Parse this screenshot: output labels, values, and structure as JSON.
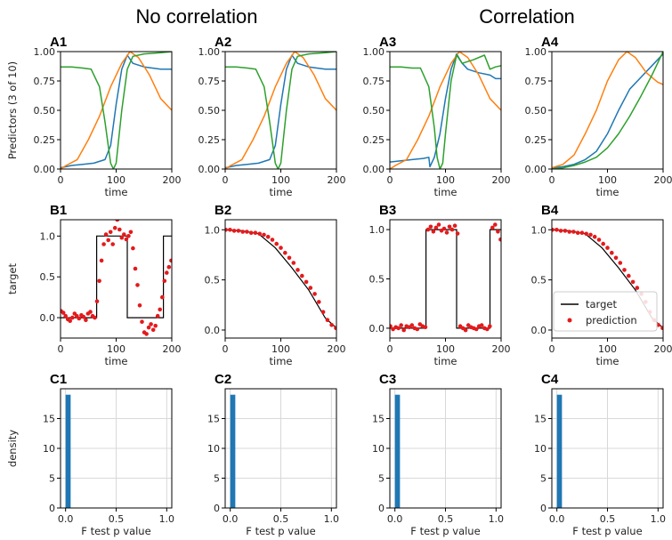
{
  "headings": {
    "left": "No correlation",
    "right": "Correlation"
  },
  "colors": {
    "blue": "#1f77b4",
    "orange": "#ff7f0e",
    "green": "#2ca02c",
    "red": "#e41a1c",
    "black": "#000000"
  },
  "chart_data": [
    {
      "panel": "A1",
      "type": "line",
      "xlabel": "time",
      "ylabel": "Predictors (3 of 10)",
      "xlim": [
        0,
        200
      ],
      "ylim": [
        0,
        1
      ],
      "xticks": [
        0,
        100,
        200
      ],
      "yticks": [
        "0.00",
        "0.25",
        "0.50",
        "0.75",
        "1.00"
      ],
      "series": [
        {
          "color": "#1f77b4",
          "x": [
            0,
            20,
            40,
            60,
            80,
            90,
            100,
            110,
            120,
            130,
            150,
            180,
            200
          ],
          "y": [
            0.01,
            0.03,
            0.04,
            0.05,
            0.08,
            0.2,
            0.55,
            0.85,
            0.97,
            0.9,
            0.87,
            0.85,
            0.85
          ]
        },
        {
          "color": "#ff7f0e",
          "x": [
            0,
            10,
            30,
            50,
            70,
            90,
            110,
            125,
            140,
            160,
            180,
            200
          ],
          "y": [
            0,
            0.03,
            0.08,
            0.25,
            0.45,
            0.7,
            0.9,
            1.0,
            0.95,
            0.8,
            0.6,
            0.5
          ]
        },
        {
          "color": "#2ca02c",
          "x": [
            0,
            20,
            40,
            55,
            70,
            80,
            90,
            95,
            100,
            110,
            120,
            130,
            150,
            180,
            200
          ],
          "y": [
            0.87,
            0.87,
            0.86,
            0.85,
            0.7,
            0.4,
            0.05,
            0.0,
            0.05,
            0.5,
            0.85,
            0.96,
            0.98,
            0.99,
            1.0
          ]
        }
      ]
    },
    {
      "panel": "A2",
      "type": "line",
      "xlabel": "time",
      "xlim": [
        0,
        200
      ],
      "ylim": [
        0,
        1
      ],
      "xticks": [
        0,
        100,
        200
      ],
      "yticks": [
        "0.00",
        "0.25",
        "0.50",
        "0.75",
        "1.00"
      ],
      "series": [
        {
          "color": "#1f77b4",
          "x": [
            0,
            20,
            40,
            60,
            80,
            90,
            100,
            110,
            120,
            130,
            150,
            180,
            200
          ],
          "y": [
            0.01,
            0.03,
            0.04,
            0.05,
            0.08,
            0.2,
            0.55,
            0.85,
            0.97,
            0.9,
            0.87,
            0.85,
            0.85
          ]
        },
        {
          "color": "#ff7f0e",
          "x": [
            0,
            10,
            30,
            50,
            70,
            90,
            110,
            125,
            140,
            160,
            180,
            200
          ],
          "y": [
            0,
            0.03,
            0.08,
            0.25,
            0.45,
            0.7,
            0.9,
            1.0,
            0.95,
            0.8,
            0.6,
            0.5
          ]
        },
        {
          "color": "#2ca02c",
          "x": [
            0,
            20,
            40,
            55,
            70,
            80,
            90,
            95,
            100,
            110,
            120,
            130,
            150,
            180,
            200
          ],
          "y": [
            0.87,
            0.87,
            0.86,
            0.85,
            0.7,
            0.4,
            0.05,
            0.0,
            0.05,
            0.5,
            0.85,
            0.96,
            0.98,
            0.99,
            1.0
          ]
        }
      ]
    },
    {
      "panel": "A3",
      "type": "line",
      "xlabel": "time",
      "xlim": [
        0,
        200
      ],
      "ylim": [
        0,
        1
      ],
      "xticks": [
        0,
        100,
        200
      ],
      "yticks": [
        "0.00",
        "0.25",
        "0.50",
        "0.75",
        "1.00"
      ],
      "series": [
        {
          "color": "#1f77b4",
          "x": [
            0,
            20,
            40,
            60,
            70,
            72,
            80,
            90,
            100,
            110,
            120,
            130,
            140,
            160,
            180,
            190,
            200
          ],
          "y": [
            0.06,
            0.07,
            0.08,
            0.09,
            0.1,
            0.02,
            0.1,
            0.3,
            0.6,
            0.85,
            0.98,
            0.9,
            0.85,
            0.82,
            0.8,
            0.77,
            0.77
          ]
        },
        {
          "color": "#ff7f0e",
          "x": [
            0,
            10,
            30,
            50,
            70,
            90,
            110,
            125,
            140,
            160,
            180,
            200
          ],
          "y": [
            0,
            0.03,
            0.08,
            0.25,
            0.45,
            0.7,
            0.9,
            1.0,
            0.95,
            0.8,
            0.6,
            0.5
          ]
        },
        {
          "color": "#2ca02c",
          "x": [
            0,
            20,
            40,
            55,
            70,
            80,
            85,
            90,
            95,
            100,
            110,
            120,
            130,
            150,
            170,
            180,
            190,
            200
          ],
          "y": [
            0.87,
            0.87,
            0.86,
            0.86,
            0.7,
            0.35,
            0.1,
            0.0,
            0.05,
            0.3,
            0.75,
            0.97,
            0.9,
            0.93,
            0.97,
            0.85,
            0.87,
            0.88
          ]
        }
      ]
    },
    {
      "panel": "A4",
      "type": "line",
      "xlabel": "time",
      "xlim": [
        0,
        200
      ],
      "ylim": [
        0,
        1
      ],
      "xticks": [
        0,
        100,
        200
      ],
      "yticks": [
        "0.00",
        "0.25",
        "0.50",
        "0.75",
        "1.00"
      ],
      "series": [
        {
          "color": "#1f77b4",
          "x": [
            0,
            20,
            40,
            60,
            80,
            100,
            120,
            140,
            160,
            180,
            200
          ],
          "y": [
            0.01,
            0.02,
            0.04,
            0.08,
            0.15,
            0.3,
            0.5,
            0.68,
            0.78,
            0.88,
            0.98
          ]
        },
        {
          "color": "#ff7f0e",
          "x": [
            0,
            20,
            40,
            60,
            80,
            100,
            120,
            135,
            150,
            170,
            190,
            200
          ],
          "y": [
            0.01,
            0.04,
            0.12,
            0.3,
            0.5,
            0.75,
            0.93,
            1.0,
            0.95,
            0.82,
            0.74,
            0.72
          ]
        },
        {
          "color": "#2ca02c",
          "x": [
            0,
            20,
            40,
            60,
            80,
            100,
            120,
            140,
            160,
            180,
            200
          ],
          "y": [
            0,
            0.01,
            0.03,
            0.06,
            0.1,
            0.18,
            0.3,
            0.45,
            0.62,
            0.8,
            1.0
          ]
        }
      ]
    },
    {
      "panel": "B1",
      "type": "line+scatter",
      "xlabel": "time",
      "ylabel": "target",
      "xlim": [
        0,
        200
      ],
      "ylim": [
        -0.25,
        1.2
      ],
      "xticks": [
        0,
        100,
        200
      ],
      "yticks": [
        "0.0",
        "0.5",
        "1.0"
      ],
      "target": {
        "x": [
          0,
          65,
          65,
          120,
          120,
          185,
          185,
          200
        ],
        "y": [
          0,
          0,
          1,
          1,
          0,
          0,
          1,
          1
        ]
      },
      "prediction_y": [
        0.08,
        0.06,
        0.02,
        -0.02,
        -0.04,
        0.0,
        0.05,
        0.02,
        -0.01,
        0.03,
        0.01,
        -0.03,
        0.05,
        0.07,
        0.02,
        0.0,
        0.2,
        0.45,
        0.7,
        0.9,
        1.02,
        0.95,
        1.05,
        0.9,
        1.1,
        1.2,
        1.08,
        0.98,
        1.02,
        0.96,
        1.0,
        1.05,
        0.85,
        0.6,
        0.4,
        0.15,
        -0.05,
        -0.18,
        -0.2,
        -0.12,
        -0.08,
        -0.15,
        -0.1,
        0.02,
        0.1,
        0.25,
        0.45,
        0.55,
        0.62,
        0.7
      ]
    },
    {
      "panel": "B2",
      "type": "scatter",
      "xlabel": "time",
      "xlim": [
        0,
        200
      ],
      "ylim": [
        -0.08,
        1.1
      ],
      "xticks": [
        0,
        100,
        200
      ],
      "yticks": [
        "0.0",
        "0.5",
        "1.0"
      ],
      "target": {
        "x": [
          0,
          30,
          60,
          90,
          120,
          150,
          180,
          200
        ],
        "y": [
          1.0,
          0.99,
          0.96,
          0.82,
          0.62,
          0.4,
          0.12,
          0.02
        ]
      },
      "prediction_y": [
        1.0,
        1.0,
        0.99,
        0.99,
        0.98,
        0.98,
        0.97,
        0.97,
        0.96,
        0.95,
        0.93,
        0.9,
        0.86,
        0.82,
        0.77,
        0.72,
        0.67,
        0.6,
        0.54,
        0.48,
        0.42,
        0.36,
        0.28,
        0.18,
        0.1,
        0.05,
        0.02
      ]
    },
    {
      "panel": "B3",
      "type": "line+scatter",
      "xlabel": "time",
      "xlim": [
        0,
        200
      ],
      "ylim": [
        -0.1,
        1.1
      ],
      "xticks": [
        0,
        100,
        200
      ],
      "yticks": [
        "0.0",
        "0.5",
        "1.0"
      ],
      "target": {
        "x": [
          0,
          65,
          65,
          120,
          120,
          180,
          180,
          200
        ],
        "y": [
          0,
          0,
          1,
          1,
          0,
          0,
          1,
          1
        ]
      },
      "prediction_y": [
        0.02,
        -0.01,
        0.01,
        0.0,
        0.03,
        -0.02,
        0.02,
        0.01,
        0.03,
        0.0,
        -0.01,
        0.04,
        0.02,
        0.01,
        1.0,
        1.03,
        0.98,
        1.02,
        1.05,
        0.99,
        1.01,
        0.97,
        1.03,
        1.0,
        1.04,
        0.96,
        0.02,
        0.0,
        -0.02,
        0.03,
        0.01,
        0.0,
        -0.01,
        0.02,
        0.03,
        0.0,
        -0.01,
        0.02,
        1.02,
        1.05,
        0.98,
        0.9
      ]
    },
    {
      "panel": "B4",
      "type": "scatter",
      "xlabel": "time",
      "xlim": [
        0,
        200
      ],
      "ylim": [
        -0.08,
        1.1
      ],
      "xticks": [
        0,
        100,
        200
      ],
      "yticks": [
        "0.0",
        "0.5",
        "1.0"
      ],
      "legend": [
        "target",
        "prediction"
      ],
      "legend_loc": "lower-right",
      "target": {
        "x": [
          0,
          30,
          60,
          90,
          120,
          150,
          180,
          200
        ],
        "y": [
          1.0,
          0.99,
          0.96,
          0.82,
          0.62,
          0.4,
          0.12,
          0.02
        ]
      },
      "prediction_y": [
        1.0,
        1.0,
        0.99,
        0.99,
        0.98,
        0.98,
        0.97,
        0.97,
        0.96,
        0.95,
        0.93,
        0.9,
        0.86,
        0.82,
        0.77,
        0.72,
        0.67,
        0.6,
        0.54,
        0.48,
        0.42,
        0.36,
        0.28,
        0.18,
        0.1,
        0.05,
        0.02
      ]
    },
    {
      "panel": "C1",
      "type": "bar",
      "xlabel": "F test p value",
      "ylabel": "density",
      "xlim": [
        -0.05,
        1.05
      ],
      "ylim": [
        0,
        20
      ],
      "xticks": [
        "0.0",
        "0.5",
        "1.0"
      ],
      "yticks": [
        "0",
        "5",
        "10",
        "15"
      ],
      "bins": [
        {
          "x0": 0.0,
          "x1": 0.05,
          "value": 19
        }
      ]
    },
    {
      "panel": "C2",
      "type": "bar",
      "xlabel": "F test p value",
      "xlim": [
        -0.05,
        1.05
      ],
      "ylim": [
        0,
        20
      ],
      "xticks": [
        "0.0",
        "0.5",
        "1.0"
      ],
      "yticks": [
        "0",
        "5",
        "10",
        "15"
      ],
      "bins": [
        {
          "x0": 0.0,
          "x1": 0.05,
          "value": 19
        }
      ]
    },
    {
      "panel": "C3",
      "type": "bar",
      "xlabel": "F test p value",
      "xlim": [
        -0.05,
        1.05
      ],
      "ylim": [
        0,
        20
      ],
      "xticks": [
        "0.0",
        "0.5",
        "1.0"
      ],
      "yticks": [
        "0",
        "5",
        "10",
        "15"
      ],
      "bins": [
        {
          "x0": 0.0,
          "x1": 0.05,
          "value": 19
        }
      ]
    },
    {
      "panel": "C4",
      "type": "bar",
      "xlabel": "F test p value",
      "xlim": [
        -0.05,
        1.05
      ],
      "ylim": [
        0,
        20
      ],
      "xticks": [
        "0.0",
        "0.5",
        "1.0"
      ],
      "yticks": [
        "0",
        "5",
        "10",
        "15"
      ],
      "bins": [
        {
          "x0": 0.0,
          "x1": 0.05,
          "value": 19
        }
      ]
    }
  ]
}
